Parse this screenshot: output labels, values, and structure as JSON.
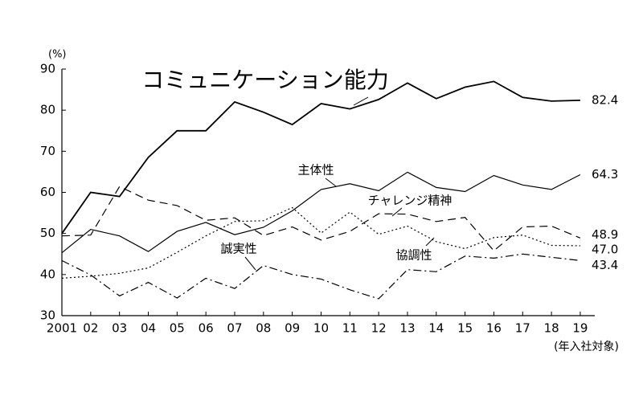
{
  "chart_data": {
    "type": "line",
    "y_unit": "(%)",
    "x_label": "(年入社対象)",
    "categories": [
      "2001",
      "02",
      "03",
      "04",
      "05",
      "06",
      "07",
      "08",
      "09",
      "10",
      "11",
      "12",
      "13",
      "14",
      "15",
      "16",
      "17",
      "18",
      "19"
    ],
    "ylim": [
      30,
      90
    ],
    "yticks": [
      30,
      40,
      50,
      60,
      70,
      80,
      90
    ],
    "grid": false,
    "series": [
      {
        "name": "コミュニケーション能力",
        "color": "#000000",
        "dash": "solid",
        "values": [
          50,
          60,
          59,
          68.5,
          75,
          75,
          82,
          79.5,
          76.5,
          81.6,
          80.3,
          82.6,
          86.6,
          82.8,
          85.6,
          87,
          83.1,
          82.2,
          82.4
        ],
        "value_labels": [
          null,
          null,
          null,
          null,
          null,
          null,
          null,
          null,
          null,
          null,
          null,
          null,
          null,
          null,
          null,
          null,
          null,
          null,
          "82.4"
        ]
      },
      {
        "name": "主体性",
        "color": "#000000",
        "dash": "solid",
        "values": [
          45.3,
          51,
          49.4,
          45.6,
          50.5,
          52.7,
          49.7,
          51.5,
          55.5,
          60.7,
          62.1,
          60.4,
          64.9,
          61.2,
          60.2,
          64.1,
          61.8,
          60.7,
          64.3
        ],
        "value_labels": [
          null,
          null,
          null,
          null,
          null,
          null,
          null,
          null,
          null,
          null,
          null,
          null,
          null,
          null,
          null,
          null,
          null,
          null,
          "64.3"
        ]
      },
      {
        "name": "チャレンジ精神",
        "color": "#000000",
        "dash": "dashed",
        "values": [
          49.4,
          49.6,
          61.4,
          58.1,
          56.8,
          53.2,
          53.8,
          49.5,
          51.6,
          48.4,
          50.5,
          54.8,
          54.7,
          52.9,
          53.9,
          45.8,
          51.6,
          51.8,
          48.9
        ],
        "value_labels": [
          null,
          null,
          null,
          null,
          null,
          null,
          null,
          null,
          null,
          null,
          null,
          null,
          null,
          null,
          null,
          null,
          null,
          null,
          "48.9"
        ]
      },
      {
        "name": "協調性",
        "color": "#000000",
        "dash": "dotted",
        "values": [
          39.1,
          39.6,
          40.3,
          41.6,
          45.4,
          49.4,
          52.9,
          53.1,
          56.3,
          50.1,
          55.2,
          49.8,
          51.8,
          48.0,
          46.3,
          49,
          49.6,
          47.1,
          47.0
        ],
        "value_labels": [
          null,
          null,
          null,
          null,
          null,
          null,
          null,
          null,
          null,
          null,
          null,
          null,
          null,
          null,
          null,
          null,
          null,
          null,
          "47.0"
        ]
      },
      {
        "name": "誠実性",
        "color": "#000000",
        "dash": "dashdot",
        "values": [
          43.4,
          39.9,
          34.8,
          38.1,
          34.3,
          39.1,
          36.6,
          42.2,
          40,
          38.9,
          36.3,
          34.1,
          41.2,
          40.7,
          44.5,
          44,
          45,
          44.2,
          43.4
        ],
        "value_labels": [
          null,
          null,
          null,
          null,
          null,
          null,
          null,
          null,
          null,
          null,
          null,
          null,
          null,
          null,
          null,
          null,
          null,
          null,
          "43.4"
        ]
      }
    ]
  }
}
